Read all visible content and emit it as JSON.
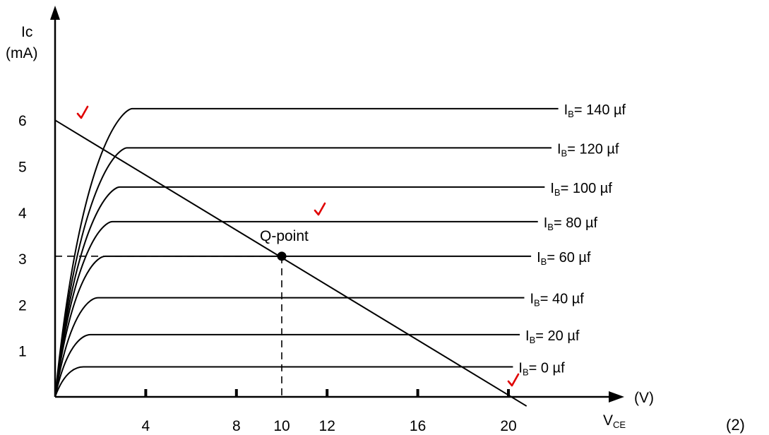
{
  "chart_data": {
    "type": "line",
    "ylabel": "Ic",
    "yunit": "(mA)",
    "xlabel_main": "V",
    "xlabel_sub": "CE",
    "xunit": "(V)",
    "corner_mark": "(2)",
    "x_ticks": [
      4,
      8,
      10,
      12,
      16,
      20
    ],
    "y_ticks": [
      1,
      2,
      3,
      4,
      5,
      6
    ],
    "xlim": [
      0,
      21
    ],
    "ylim": [
      0,
      7
    ],
    "series": [
      {
        "name": "IB= 0 µf",
        "sub": "B",
        "prefix": "I",
        "suffix": "= 0 µf",
        "current_ma": 0.65,
        "x_end": 20.2
      },
      {
        "name": "IB= 20 µf",
        "sub": "B",
        "prefix": "I",
        "suffix": "= 20 µf",
        "current_ma": 1.35,
        "x_end": 20.5
      },
      {
        "name": "IB= 40 µf",
        "sub": "B",
        "prefix": "I",
        "suffix": "= 40 µf",
        "current_ma": 2.15,
        "x_end": 20.7
      },
      {
        "name": "IB= 60 µf",
        "sub": "B",
        "prefix": "I",
        "suffix": "= 60 µf",
        "current_ma": 3.05,
        "x_end": 21.0
      },
      {
        "name": "IB= 80 µf",
        "sub": "B",
        "prefix": "I",
        "suffix": "= 80 µf",
        "current_ma": 3.8,
        "x_end": 21.3
      },
      {
        "name": "IB= 100 µf",
        "sub": "B",
        "prefix": "I",
        "suffix": "= 100 µf",
        "current_ma": 4.55,
        "x_end": 21.6
      },
      {
        "name": "IB= 120 µf",
        "sub": "B",
        "prefix": "I",
        "suffix": "= 120 µf",
        "current_ma": 5.4,
        "x_end": 21.9
      },
      {
        "name": "IB= 140 µf",
        "sub": "B",
        "prefix": "I",
        "suffix": "= 140 µf",
        "current_ma": 6.25,
        "x_end": 22.2
      }
    ],
    "load_line": {
      "x": [
        0,
        20.8
      ],
      "y": [
        6,
        -0.2
      ]
    },
    "q_point": {
      "label": "Q-point",
      "x": 10,
      "y": 3.05
    },
    "checkmark_color": "#e00000"
  }
}
